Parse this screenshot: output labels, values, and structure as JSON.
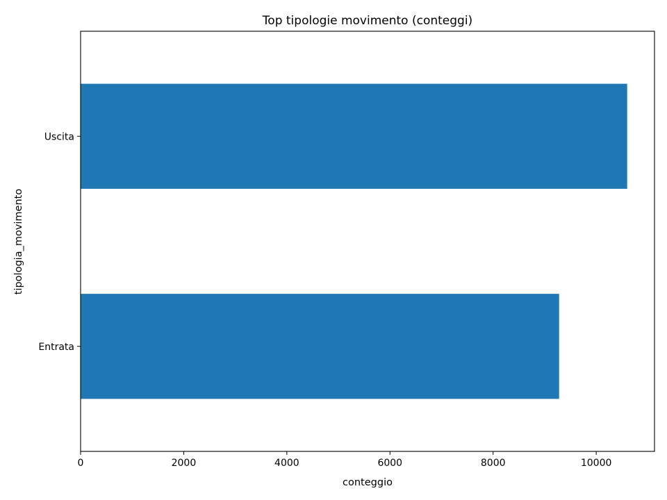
{
  "chart_data": {
    "type": "bar",
    "orientation": "horizontal",
    "title": "Top tipologie movimento (conteggi)",
    "xlabel": "conteggio",
    "ylabel": "tipologia_movimento",
    "categories": [
      "Entrata",
      "Uscita"
    ],
    "values": [
      9280,
      10600
    ],
    "xlim": [
      0,
      11130
    ],
    "xticks": [
      0,
      2000,
      4000,
      6000,
      8000,
      10000
    ],
    "grid": false,
    "legend": "none",
    "bar_color": "#1f77b4"
  }
}
